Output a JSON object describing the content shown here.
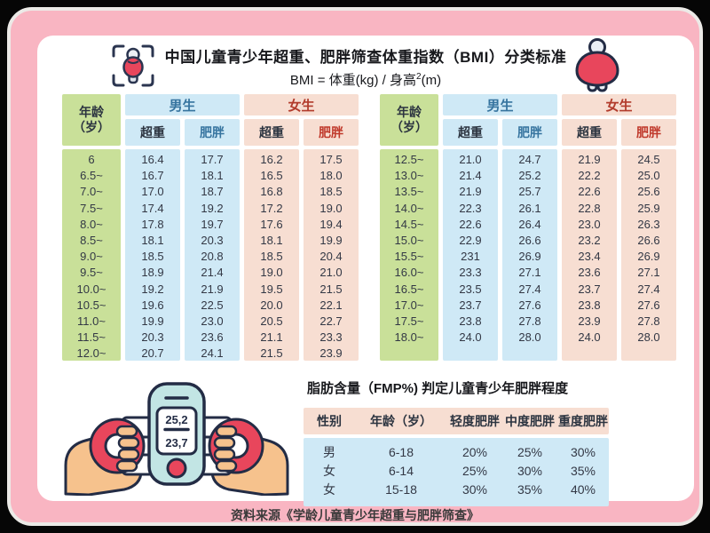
{
  "header": {
    "title": "中国儿童青少年超重、肥胖筛查体重指数（BMI）分类标准",
    "formula_prefix": "BMI = 体重(kg) / 身高",
    "formula_sup": "2",
    "formula_suffix": "(m)"
  },
  "icons": {
    "left": "bmi-scan-person-icon",
    "right": "obese-person-icon",
    "bottom": "hands-holding-body-fat-meter-illustration"
  },
  "bmi": {
    "labels": {
      "age_line1": "年龄",
      "age_line2": "（岁）",
      "boys": "男生",
      "girls": "女生",
      "overweight": "超重",
      "obese": "肥胖"
    },
    "left": {
      "rows": [
        {
          "age": "6",
          "b_ow": "16.4",
          "b_ob": "17.7",
          "g_ow": "16.2",
          "g_ob": "17.5"
        },
        {
          "age": "6.5~",
          "b_ow": "16.7",
          "b_ob": "18.1",
          "g_ow": "16.5",
          "g_ob": "18.0"
        },
        {
          "age": "7.0~",
          "b_ow": "17.0",
          "b_ob": "18.7",
          "g_ow": "16.8",
          "g_ob": "18.5"
        },
        {
          "age": "7.5~",
          "b_ow": "17.4",
          "b_ob": "19.2",
          "g_ow": "17.2",
          "g_ob": "19.0"
        },
        {
          "age": "8.0~",
          "b_ow": "17.8",
          "b_ob": "19.7",
          "g_ow": "17.6",
          "g_ob": "19.4"
        },
        {
          "age": "8.5~",
          "b_ow": "18.1",
          "b_ob": "20.3",
          "g_ow": "18.1",
          "g_ob": "19.9"
        },
        {
          "age": "9.0~",
          "b_ow": "18.5",
          "b_ob": "20.8",
          "g_ow": "18.5",
          "g_ob": "20.4"
        },
        {
          "age": "9.5~",
          "b_ow": "18.9",
          "b_ob": "21.4",
          "g_ow": "19.0",
          "g_ob": "21.0"
        },
        {
          "age": "10.0~",
          "b_ow": "19.2",
          "b_ob": "21.9",
          "g_ow": "19.5",
          "g_ob": "21.5"
        },
        {
          "age": "10.5~",
          "b_ow": "19.6",
          "b_ob": "22.5",
          "g_ow": "20.0",
          "g_ob": "22.1"
        },
        {
          "age": "11.0~",
          "b_ow": "19.9",
          "b_ob": "23.0",
          "g_ow": "20.5",
          "g_ob": "22.7"
        },
        {
          "age": "11.5~",
          "b_ow": "20.3",
          "b_ob": "23.6",
          "g_ow": "21.1",
          "g_ob": "23.3"
        },
        {
          "age": "12.0~",
          "b_ow": "20.7",
          "b_ob": "24.1",
          "g_ow": "21.5",
          "g_ob": "23.9"
        }
      ]
    },
    "right": {
      "rows": [
        {
          "age": "12.5~",
          "b_ow": "21.0",
          "b_ob": "24.7",
          "g_ow": "21.9",
          "g_ob": "24.5"
        },
        {
          "age": "13.0~",
          "b_ow": "21.4",
          "b_ob": "25.2",
          "g_ow": "22.2",
          "g_ob": "25.0"
        },
        {
          "age": "13.5~",
          "b_ow": "21.9",
          "b_ob": "25.7",
          "g_ow": "22.6",
          "g_ob": "25.6"
        },
        {
          "age": "14.0~",
          "b_ow": "22.3",
          "b_ob": "26.1",
          "g_ow": "22.8",
          "g_ob": "25.9"
        },
        {
          "age": "14.5~",
          "b_ow": "22.6",
          "b_ob": "26.4",
          "g_ow": "23.0",
          "g_ob": "26.3"
        },
        {
          "age": "15.0~",
          "b_ow": "22.9",
          "b_ob": "26.6",
          "g_ow": "23.2",
          "g_ob": "26.6"
        },
        {
          "age": "15.5~",
          "b_ow": "231",
          "b_ob": "26.9",
          "g_ow": "23.4",
          "g_ob": "26.9"
        },
        {
          "age": "16.0~",
          "b_ow": "23.3",
          "b_ob": "27.1",
          "g_ow": "23.6",
          "g_ob": "27.1"
        },
        {
          "age": "16.5~",
          "b_ow": "23.5",
          "b_ob": "27.4",
          "g_ow": "23.7",
          "g_ob": "27.4"
        },
        {
          "age": "17.0~",
          "b_ow": "23.7",
          "b_ob": "27.6",
          "g_ow": "23.8",
          "g_ob": "27.6"
        },
        {
          "age": "17.5~",
          "b_ow": "23.8",
          "b_ob": "27.8",
          "g_ow": "23.9",
          "g_ob": "27.8"
        },
        {
          "age": "18.0~",
          "b_ow": "24.0",
          "b_ob": "28.0",
          "g_ow": "24.0",
          "g_ob": "28.0"
        }
      ]
    }
  },
  "fmp": {
    "title": "脂肪含量（FMP%) 判定儿童青少年肥胖程度",
    "headers": [
      "性别",
      "年龄（岁）",
      "轻度肥胖",
      "中度肥胖",
      "重度肥胖"
    ],
    "rows": [
      [
        "男",
        "6-18",
        "20%",
        "25%",
        "30%"
      ],
      [
        "女",
        "6-14",
        "25%",
        "30%",
        "35%"
      ],
      [
        "女",
        "15-18",
        "30%",
        "35%",
        "40%"
      ]
    ],
    "device_top": "25,2",
    "device_bottom": "23,7"
  },
  "footer": {
    "source": "资料来源《学龄儿童青少年超重与肥胖筛查》"
  },
  "colors": {
    "frame_pink": "#f9b5c2",
    "frame_border": "#eceae7",
    "age_green": "#c9e099",
    "boys_blue_bg": "#cfe9f6",
    "girls_peach_bg": "#f7ded2",
    "boys_text": "#36749f",
    "girls_text": "#b23b2b",
    "obese_red_text": "#c0392b",
    "accent_red": "#e8465c",
    "device_teal": "#c2e5e4",
    "skin": "#f6c28d",
    "outline_dark": "#232c45"
  }
}
